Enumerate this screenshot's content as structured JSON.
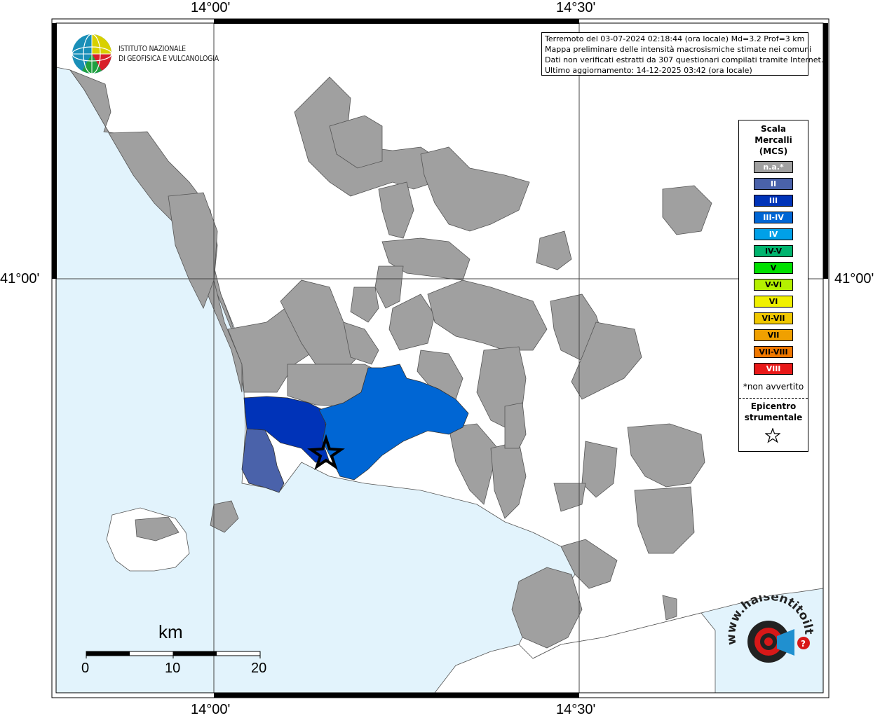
{
  "map": {
    "coord_labels": {
      "top_left": "14°00'",
      "top_right": "14°30'",
      "bottom_left": "14°00'",
      "bottom_right": "14°30'",
      "left": "41°00'",
      "right": "41°00'"
    },
    "info_lines": [
      "Terremoto del 03-07-2024 02:18:44 (ora locale) Md=3.2 Prof=3 km",
      "Mappa preliminare delle intensità macrosismiche stimate nei comuni",
      "Dati non verificati estratti da 307 questionari compilati tramite Internet.",
      "Ultimo aggiornamento: 14-12-2025 03:42 (ora locale)"
    ],
    "ingv_logo": {
      "line1": "ISTITUTO NAZIONALE",
      "line2": "DI GEOFISICA E VULCANOLOGIA",
      "icon": "ingv-globe-logo"
    },
    "legend": {
      "title_lines": [
        "Scala",
        "Mercalli",
        "(MCS)"
      ],
      "items": [
        {
          "label": "n.a.*",
          "color": "#a0a0a0",
          "text_color": "#ffffff"
        },
        {
          "label": "II",
          "color": "#4a62aa",
          "text_color": "#ffffff"
        },
        {
          "label": "III",
          "color": "#0033b8",
          "text_color": "#ffffff"
        },
        {
          "label": "III-IV",
          "color": "#0066d4",
          "text_color": "#ffffff"
        },
        {
          "label": "IV",
          "color": "#00a0e8",
          "text_color": "#ffffff"
        },
        {
          "label": "IV-V",
          "color": "#00b46e",
          "text_color": "#000000"
        },
        {
          "label": "V",
          "color": "#00e000",
          "text_color": "#000000"
        },
        {
          "label": "V-VI",
          "color": "#b4f000",
          "text_color": "#000000"
        },
        {
          "label": "VI",
          "color": "#f0f000",
          "text_color": "#000000"
        },
        {
          "label": "VI-VII",
          "color": "#f0c800",
          "text_color": "#000000"
        },
        {
          "label": "VII",
          "color": "#f0a000",
          "text_color": "#000000"
        },
        {
          "label": "VII-VIII",
          "color": "#f07800",
          "text_color": "#000000"
        },
        {
          "label": "VIII",
          "color": "#e81818",
          "text_color": "#ffffff"
        }
      ],
      "note": "*non avvertito",
      "epicenter_lines": [
        "Epicentro",
        "strumentale"
      ],
      "epicenter_icon": "star-icon"
    },
    "scale_bar": {
      "unit": "km",
      "labels": [
        "0",
        "10",
        "20"
      ]
    },
    "colors": {
      "sea": "#e2f3fc",
      "land_na": "#a0a0a0",
      "intensity_II": "#4a62aa",
      "intensity_III": "#0033b8",
      "intensity_III_IV": "#0066d4"
    },
    "hsit_logo": {
      "text": "www.haisentitoilterremoto.it",
      "icon": "hsit-logo"
    }
  }
}
